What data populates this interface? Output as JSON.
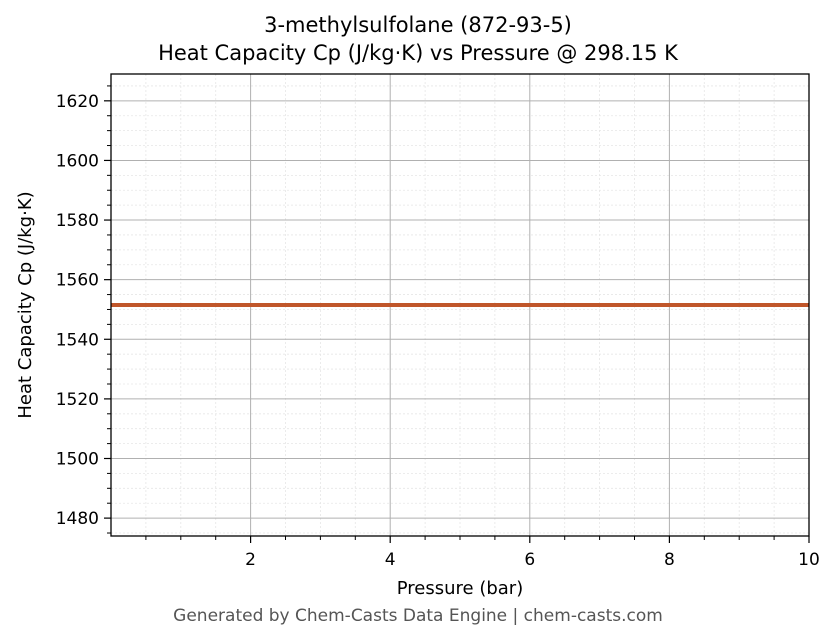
{
  "title_line1": "3-methylsulfolane (872-93-5)",
  "title_line2": "Heat Capacity Cp (J/kg·K) vs Pressure @ 298.15 K",
  "footer": "Generated by Chem-Casts Data Engine | chem-casts.com",
  "colors": {
    "series": "#c0562a",
    "major_grid": "#b0b0b0",
    "minor_grid": "#e6e6e6"
  },
  "chart_data": {
    "type": "line",
    "title": "3-methylsulfolane (872-93-5)\nHeat Capacity Cp (J/kg·K) vs Pressure @ 298.15 K",
    "xlabel": "Pressure (bar)",
    "ylabel": "Heat Capacity Cp (J/kg·K)",
    "xlim": [
      0.0,
      10.0
    ],
    "ylim": [
      1474.0,
      1629.0
    ],
    "x_ticks": [
      2,
      4,
      6,
      8,
      10
    ],
    "y_ticks": [
      1480,
      1500,
      1520,
      1540,
      1560,
      1580,
      1600,
      1620
    ],
    "grid": true,
    "x": [
      0.0,
      10.0
    ],
    "series": [
      {
        "values": [
          1551.5,
          1551.5
        ]
      }
    ]
  }
}
